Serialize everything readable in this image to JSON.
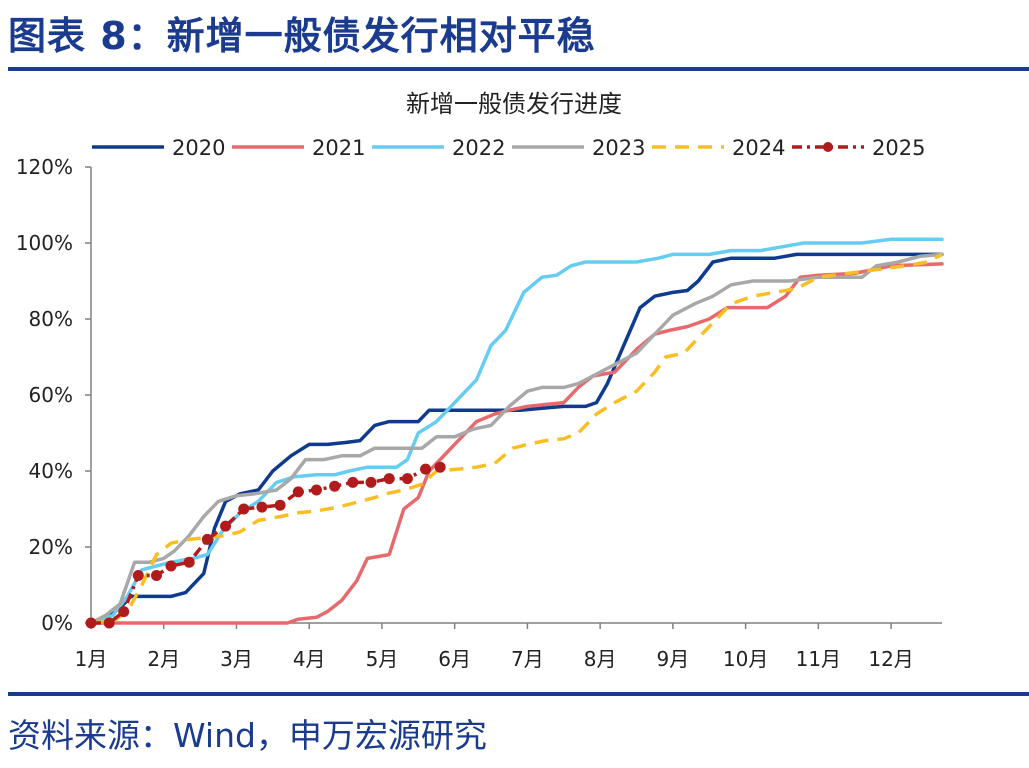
{
  "figure": {
    "title": "图表 8：新增一般债发行相对平稳",
    "source": "资料来源：Wind，申万宏源研究"
  },
  "chart_data": {
    "type": "line",
    "title": "新增一般债发行进度",
    "xlabel": "",
    "ylabel": "",
    "x_unit": "month",
    "xlim": [
      1,
      12.7
    ],
    "ylim": [
      0,
      120
    ],
    "y_ticks": [
      0,
      20,
      40,
      60,
      80,
      100,
      120
    ],
    "y_tick_labels": [
      "0%",
      "20%",
      "40%",
      "60%",
      "80%",
      "100%",
      "120%"
    ],
    "x_ticks": [
      1,
      2,
      3,
      4,
      5,
      6,
      7,
      8,
      9,
      10,
      11,
      12
    ],
    "x_tick_labels": [
      "1月",
      "2月",
      "3月",
      "4月",
      "5月",
      "6月",
      "7月",
      "8月",
      "9月",
      "10月",
      "11月",
      "12月"
    ],
    "grid": false,
    "legend_position": "top",
    "series": [
      {
        "name": "2020",
        "color": "#0e3b8e",
        "style": "solid",
        "points": [
          [
            1.0,
            0
          ],
          [
            1.2,
            1
          ],
          [
            1.4,
            4
          ],
          [
            1.55,
            7
          ],
          [
            1.7,
            7
          ],
          [
            1.9,
            7
          ],
          [
            2.1,
            7
          ],
          [
            2.3,
            8
          ],
          [
            2.55,
            13
          ],
          [
            2.7,
            25
          ],
          [
            2.85,
            32
          ],
          [
            3.05,
            34
          ],
          [
            3.3,
            35
          ],
          [
            3.5,
            40
          ],
          [
            3.75,
            44
          ],
          [
            4.0,
            47
          ],
          [
            4.25,
            47
          ],
          [
            4.5,
            47.5
          ],
          [
            4.7,
            48
          ],
          [
            4.9,
            52
          ],
          [
            5.1,
            53
          ],
          [
            5.3,
            53
          ],
          [
            5.5,
            53
          ],
          [
            5.65,
            56
          ],
          [
            5.8,
            56
          ],
          [
            6.0,
            56
          ],
          [
            6.3,
            56
          ],
          [
            6.6,
            56
          ],
          [
            6.9,
            56
          ],
          [
            7.2,
            56.5
          ],
          [
            7.5,
            57
          ],
          [
            7.8,
            57
          ],
          [
            7.95,
            58
          ],
          [
            8.1,
            63
          ],
          [
            8.3,
            72
          ],
          [
            8.55,
            83
          ],
          [
            8.75,
            86
          ],
          [
            9.0,
            87
          ],
          [
            9.2,
            87.5
          ],
          [
            9.35,
            90
          ],
          [
            9.55,
            95
          ],
          [
            9.8,
            96
          ],
          [
            10.1,
            96
          ],
          [
            10.4,
            96
          ],
          [
            10.7,
            97
          ],
          [
            11.0,
            97
          ],
          [
            11.5,
            97
          ],
          [
            12.0,
            97
          ],
          [
            12.7,
            97
          ]
        ]
      },
      {
        "name": "2021",
        "color": "#e8696d",
        "style": "solid",
        "points": [
          [
            1.0,
            0
          ],
          [
            1.5,
            0
          ],
          [
            2.0,
            0
          ],
          [
            2.5,
            0
          ],
          [
            3.0,
            0
          ],
          [
            3.5,
            0
          ],
          [
            3.7,
            0
          ],
          [
            3.85,
            1
          ],
          [
            4.1,
            1.5
          ],
          [
            4.25,
            3
          ],
          [
            4.45,
            6
          ],
          [
            4.65,
            11
          ],
          [
            4.8,
            17
          ],
          [
            4.95,
            17.5
          ],
          [
            5.1,
            18
          ],
          [
            5.3,
            30
          ],
          [
            5.5,
            33
          ],
          [
            5.65,
            40
          ],
          [
            5.9,
            45
          ],
          [
            6.05,
            48
          ],
          [
            6.3,
            53
          ],
          [
            6.55,
            55
          ],
          [
            6.75,
            56
          ],
          [
            7.0,
            57
          ],
          [
            7.25,
            57.5
          ],
          [
            7.5,
            58
          ],
          [
            7.7,
            62
          ],
          [
            7.9,
            65
          ],
          [
            8.2,
            66
          ],
          [
            8.5,
            72
          ],
          [
            8.75,
            76
          ],
          [
            8.95,
            77
          ],
          [
            9.2,
            78
          ],
          [
            9.5,
            80
          ],
          [
            9.75,
            83
          ],
          [
            10.0,
            83
          ],
          [
            10.3,
            83
          ],
          [
            10.55,
            86
          ],
          [
            10.75,
            91
          ],
          [
            11.0,
            91.5
          ],
          [
            11.5,
            92
          ],
          [
            12.0,
            94
          ],
          [
            12.7,
            94.5
          ]
        ]
      },
      {
        "name": "2022",
        "color": "#66ccf2",
        "style": "solid",
        "points": [
          [
            1.0,
            0
          ],
          [
            1.3,
            2
          ],
          [
            1.5,
            7
          ],
          [
            1.7,
            14
          ],
          [
            1.9,
            15
          ],
          [
            2.1,
            16
          ],
          [
            2.4,
            17
          ],
          [
            2.6,
            18
          ],
          [
            2.8,
            24
          ],
          [
            3.05,
            29
          ],
          [
            3.3,
            32
          ],
          [
            3.55,
            37
          ],
          [
            3.8,
            38.5
          ],
          [
            4.1,
            39
          ],
          [
            4.35,
            39
          ],
          [
            4.55,
            40
          ],
          [
            4.8,
            41
          ],
          [
            5.0,
            41
          ],
          [
            5.2,
            41
          ],
          [
            5.35,
            43
          ],
          [
            5.5,
            50
          ],
          [
            5.75,
            53
          ],
          [
            6.05,
            59
          ],
          [
            6.3,
            64
          ],
          [
            6.5,
            73
          ],
          [
            6.7,
            77
          ],
          [
            6.95,
            87
          ],
          [
            7.2,
            91
          ],
          [
            7.4,
            91.5
          ],
          [
            7.6,
            94
          ],
          [
            7.8,
            95
          ],
          [
            8.0,
            95
          ],
          [
            8.5,
            95
          ],
          [
            8.8,
            96
          ],
          [
            9.0,
            97
          ],
          [
            9.5,
            97
          ],
          [
            9.8,
            98
          ],
          [
            10.2,
            98
          ],
          [
            10.5,
            99
          ],
          [
            10.8,
            100
          ],
          [
            11.2,
            100
          ],
          [
            11.6,
            100
          ],
          [
            12.0,
            101
          ],
          [
            12.7,
            101
          ]
        ]
      },
      {
        "name": "2023",
        "color": "#a8a8a8",
        "style": "solid",
        "points": [
          [
            1.0,
            0
          ],
          [
            1.2,
            2
          ],
          [
            1.4,
            5
          ],
          [
            1.6,
            16
          ],
          [
            1.8,
            16
          ],
          [
            2.0,
            17
          ],
          [
            2.15,
            19
          ],
          [
            2.35,
            23
          ],
          [
            2.55,
            28
          ],
          [
            2.75,
            32
          ],
          [
            3.0,
            33.5
          ],
          [
            3.25,
            34
          ],
          [
            3.55,
            35
          ],
          [
            3.75,
            38
          ],
          [
            3.95,
            43
          ],
          [
            4.2,
            43
          ],
          [
            4.45,
            44
          ],
          [
            4.7,
            44
          ],
          [
            4.9,
            46
          ],
          [
            5.1,
            46
          ],
          [
            5.3,
            46
          ],
          [
            5.55,
            46
          ],
          [
            5.75,
            49
          ],
          [
            6.0,
            49
          ],
          [
            6.25,
            51
          ],
          [
            6.5,
            52
          ],
          [
            6.75,
            57
          ],
          [
            7.0,
            61
          ],
          [
            7.2,
            62
          ],
          [
            7.5,
            62
          ],
          [
            7.7,
            63
          ],
          [
            7.9,
            65
          ],
          [
            8.2,
            68
          ],
          [
            8.5,
            71
          ],
          [
            8.8,
            77
          ],
          [
            9.0,
            81
          ],
          [
            9.3,
            84
          ],
          [
            9.55,
            86
          ],
          [
            9.8,
            89
          ],
          [
            10.1,
            90
          ],
          [
            10.4,
            90
          ],
          [
            10.6,
            90
          ],
          [
            10.8,
            90.5
          ],
          [
            11.0,
            91
          ],
          [
            11.3,
            91
          ],
          [
            11.6,
            91
          ],
          [
            11.8,
            94
          ],
          [
            12.1,
            95
          ],
          [
            12.4,
            96.5
          ],
          [
            12.7,
            97
          ]
        ]
      },
      {
        "name": "2024",
        "color": "#f9bf22",
        "style": "dashed",
        "points": [
          [
            1.0,
            0
          ],
          [
            1.3,
            0.5
          ],
          [
            1.5,
            3
          ],
          [
            1.7,
            10
          ],
          [
            1.9,
            18
          ],
          [
            2.1,
            21
          ],
          [
            2.35,
            22
          ],
          [
            2.6,
            22.5
          ],
          [
            2.85,
            23
          ],
          [
            3.05,
            24
          ],
          [
            3.3,
            27
          ],
          [
            3.6,
            28
          ],
          [
            3.85,
            29
          ],
          [
            4.1,
            29.5
          ],
          [
            4.4,
            30.5
          ],
          [
            4.7,
            32
          ],
          [
            4.9,
            33
          ],
          [
            5.05,
            34
          ],
          [
            5.3,
            35
          ],
          [
            5.55,
            36.5
          ],
          [
            5.75,
            40
          ],
          [
            6.05,
            40.5
          ],
          [
            6.3,
            41
          ],
          [
            6.55,
            42
          ],
          [
            6.8,
            46
          ],
          [
            7.0,
            47
          ],
          [
            7.25,
            48
          ],
          [
            7.5,
            48.5
          ],
          [
            7.7,
            50
          ],
          [
            7.95,
            55
          ],
          [
            8.2,
            58
          ],
          [
            8.5,
            61
          ],
          [
            8.75,
            66
          ],
          [
            8.9,
            70
          ],
          [
            9.15,
            71
          ],
          [
            9.35,
            75
          ],
          [
            9.55,
            79
          ],
          [
            9.8,
            84
          ],
          [
            10.1,
            86
          ],
          [
            10.4,
            87
          ],
          [
            10.7,
            88
          ],
          [
            11.0,
            91
          ],
          [
            11.4,
            92
          ],
          [
            11.8,
            93
          ],
          [
            12.2,
            94
          ],
          [
            12.5,
            95
          ],
          [
            12.7,
            97
          ]
        ]
      },
      {
        "name": "2025",
        "color": "#b01c1c",
        "style": "dash-dot",
        "marker": "circle",
        "points": [
          [
            1.0,
            0
          ],
          [
            1.25,
            0
          ],
          [
            1.45,
            3
          ],
          [
            1.65,
            12.5
          ],
          [
            1.9,
            12.5
          ],
          [
            2.1,
            15
          ],
          [
            2.35,
            16
          ],
          [
            2.6,
            22
          ],
          [
            2.85,
            25.5
          ],
          [
            3.1,
            30
          ],
          [
            3.35,
            30.5
          ],
          [
            3.6,
            31
          ],
          [
            3.85,
            34.5
          ],
          [
            4.1,
            35
          ],
          [
            4.35,
            36
          ],
          [
            4.6,
            37
          ],
          [
            4.85,
            37
          ],
          [
            5.1,
            38
          ],
          [
            5.35,
            38
          ],
          [
            5.6,
            40.5
          ],
          [
            5.8,
            41
          ]
        ]
      }
    ]
  }
}
